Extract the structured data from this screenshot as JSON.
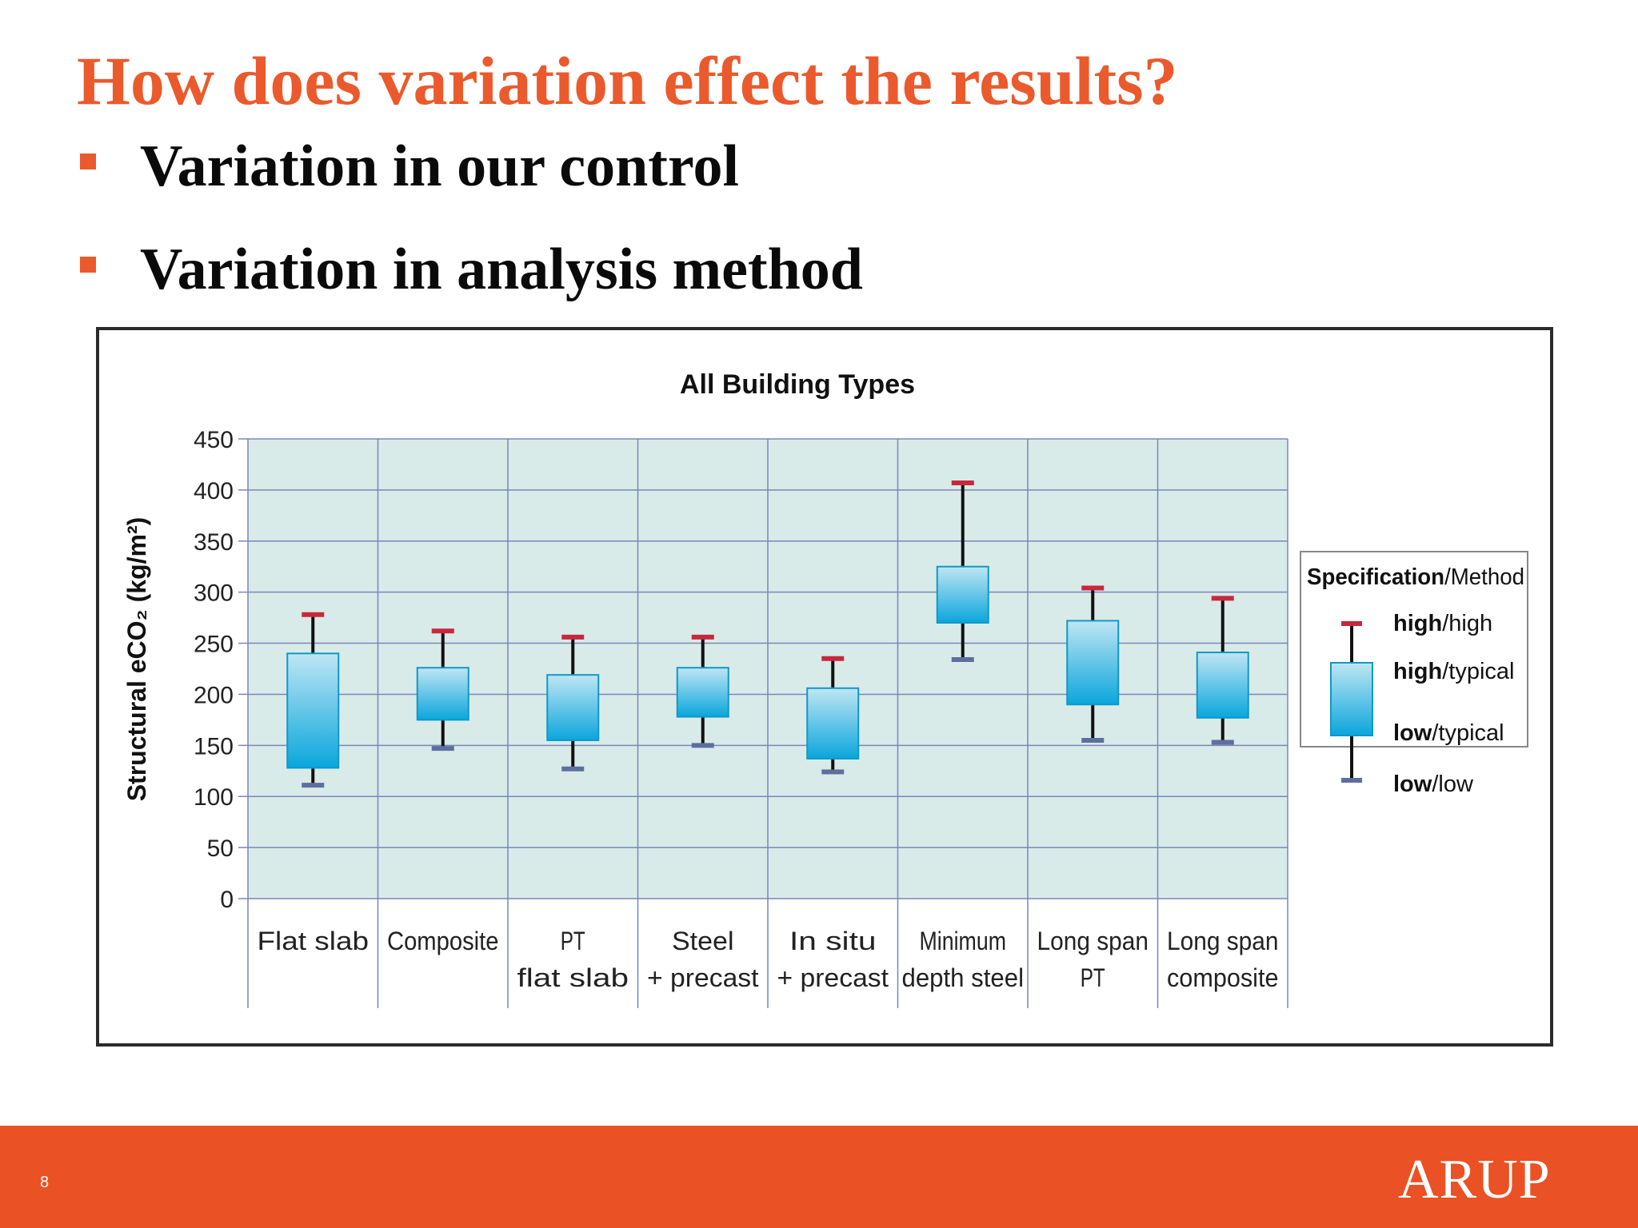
{
  "slide": {
    "title": "How does variation effect the results?",
    "bullets": [
      "Variation in our control",
      "Variation in analysis method"
    ],
    "page_number": "8",
    "logo": "ARUP"
  },
  "colors": {
    "title": "#ea5a2c",
    "footer": "#ea5124",
    "plot_background": "#d9ebe9",
    "grid": "#7a86b8",
    "box_top": "#bfe6f3",
    "box_bottom": "#0aa6dc",
    "box_border": "#1098c7",
    "high_cap": "#c8283c",
    "low_cap": "#5d6f9e"
  },
  "chart_data": {
    "type": "box",
    "title": "All Building Types",
    "ylabel": "Structural eCO₂ (kg/m²)",
    "ylim": [
      0,
      450
    ],
    "yticks": [
      0,
      50,
      100,
      150,
      200,
      250,
      300,
      350,
      400,
      450
    ],
    "grid": true,
    "legend_position": "right",
    "categories": [
      [
        "Flat slab"
      ],
      [
        "Composite"
      ],
      [
        "PT",
        "flat slab"
      ],
      [
        "Steel",
        "+ precast"
      ],
      [
        "In situ",
        "+ precast"
      ],
      [
        "Minimum",
        "depth steel"
      ],
      [
        "Long span",
        "PT"
      ],
      [
        "Long span",
        "composite"
      ]
    ],
    "series": [
      {
        "name": "high/high",
        "values": [
          278,
          262,
          256,
          256,
          235,
          407,
          304,
          294
        ]
      },
      {
        "name": "high/typical",
        "values": [
          240,
          226,
          219,
          226,
          206,
          325,
          272,
          241
        ]
      },
      {
        "name": "low/typical",
        "values": [
          128,
          175,
          155,
          178,
          137,
          270,
          190,
          177
        ]
      },
      {
        "name": "low/low",
        "values": [
          111,
          147,
          127,
          150,
          124,
          234,
          155,
          153
        ]
      }
    ],
    "legend": {
      "title_bold": "Specification",
      "title_rest": "/Method",
      "entries": [
        {
          "bold": "high",
          "rest": "/high"
        },
        {
          "bold": "high",
          "rest": "/typical"
        },
        {
          "bold": "low",
          "rest": "/typical"
        },
        {
          "bold": "low",
          "rest": "/low"
        }
      ]
    }
  }
}
